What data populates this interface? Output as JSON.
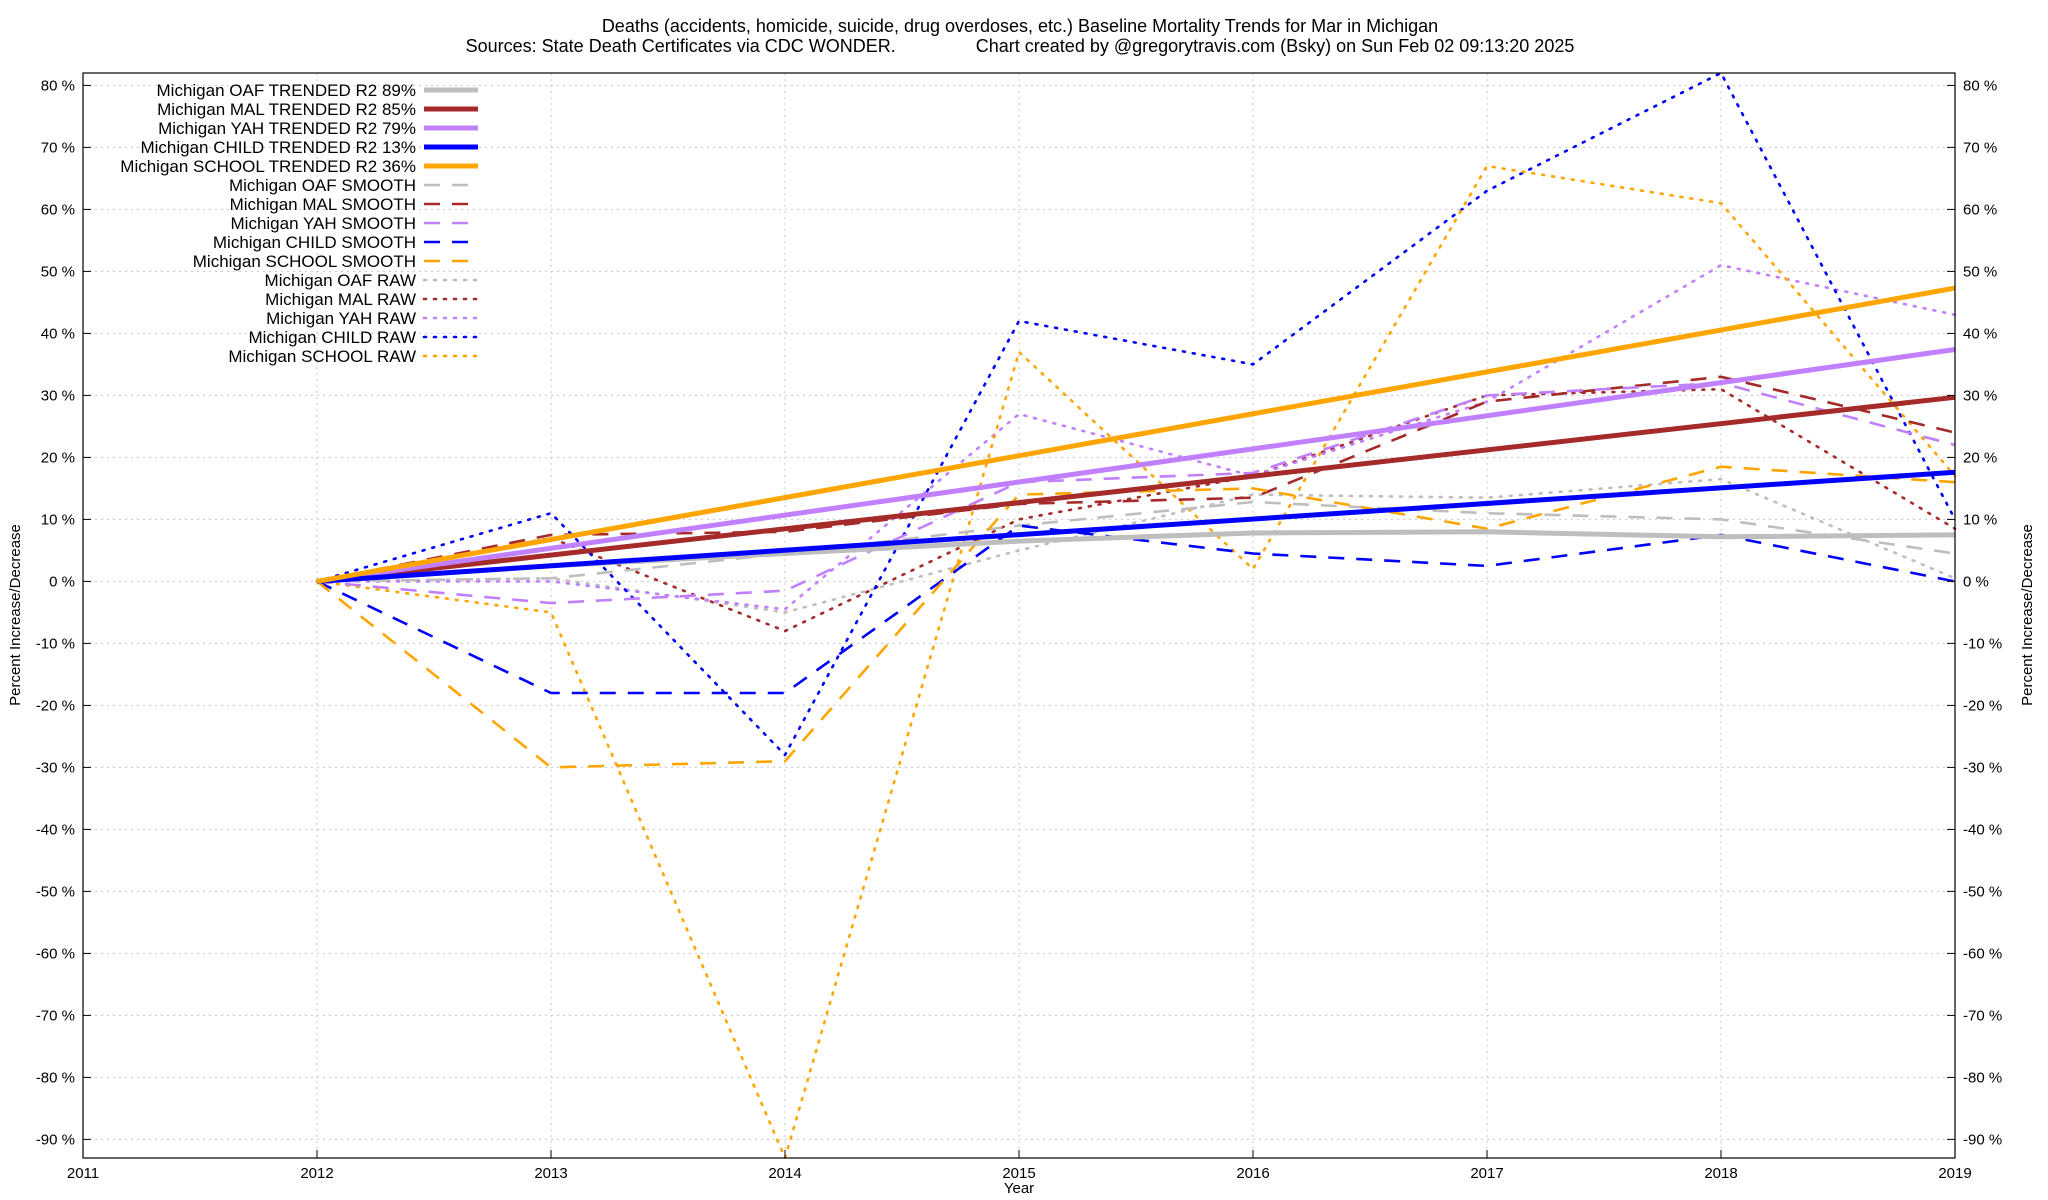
{
  "chart_data": {
    "type": "line",
    "title_lines": [
      "Deaths (accidents, homicide, suicide, drug overdoses, etc.)  Baseline Mortality Trends for Mar in Michigan",
      "Sources: State Death Certificates via CDC WONDER.                Chart created by @gregorytravis.com (Bsky) on Sun Feb 02 09:13:20 2025"
    ],
    "xlabel": "Year",
    "ylabel_left": "Percent Increase/Decrease",
    "ylabel_right": "Percent Increase/Decrease",
    "xlim": [
      2011,
      2019
    ],
    "ylim": [
      -93,
      82
    ],
    "x_ticks": [
      2011,
      2012,
      2013,
      2014,
      2015,
      2016,
      2017,
      2018,
      2019
    ],
    "y_ticks": [
      -90,
      -80,
      -70,
      -60,
      -50,
      -40,
      -30,
      -20,
      -10,
      0,
      10,
      20,
      30,
      40,
      50,
      60,
      70,
      80
    ],
    "y_tick_labels": [
      "-90 %",
      "-80 %",
      "-70 %",
      "-60 %",
      "-50 %",
      "-40 %",
      "-30 %",
      "-20 %",
      "-10 %",
      "0 %",
      "10 %",
      "20 %",
      "30 %",
      "40 %",
      "50 %",
      "60 %",
      "70 %",
      "80 %"
    ],
    "grid": true,
    "legend_position": "top-left",
    "series": [
      {
        "name": "Michigan OAF TRENDED R2  89%",
        "style": "solid",
        "color": "#bebebe",
        "x": [
          2012,
          2013,
          2014,
          2015,
          2016,
          2017,
          2018,
          2019
        ],
        "values": [
          0,
          2.5,
          4.5,
          6.5,
          7.8,
          8.0,
          7.2,
          7.5
        ]
      },
      {
        "name": "Michigan MAL TRENDED R2  85%",
        "style": "solid",
        "color": "#a52a2a",
        "x": [
          2012,
          2019
        ],
        "values": [
          0,
          29.7
        ]
      },
      {
        "name": "Michigan YAH TRENDED R2  79%",
        "style": "solid",
        "color": "#c080ff",
        "x": [
          2012,
          2019
        ],
        "values": [
          0,
          37.4
        ]
      },
      {
        "name": "Michigan CHILD TRENDED R2  13%",
        "style": "solid",
        "color": "#0000ff",
        "x": [
          2012,
          2019
        ],
        "values": [
          0,
          17.6
        ]
      },
      {
        "name": "Michigan SCHOOL TRENDED R2  36%",
        "style": "solid",
        "color": "#ffa500",
        "x": [
          2012,
          2019
        ],
        "values": [
          0,
          47.3
        ]
      },
      {
        "name": "Michigan OAF SMOOTH",
        "style": "dashed",
        "color": "#bebebe",
        "x": [
          2012,
          2013,
          2014,
          2015,
          2016,
          2017,
          2018,
          2019
        ],
        "values": [
          0,
          0.5,
          4.5,
          9.0,
          12.8,
          11.0,
          10.0,
          4.5
        ]
      },
      {
        "name": "Michigan MAL SMOOTH",
        "style": "dashed",
        "color": "#a52a2a",
        "x": [
          2012,
          2013,
          2014,
          2015,
          2016,
          2017,
          2018,
          2019
        ],
        "values": [
          0,
          7.5,
          8.0,
          12.5,
          13.5,
          29.0,
          33.0,
          24.0
        ]
      },
      {
        "name": "Michigan YAH SMOOTH",
        "style": "dashed",
        "color": "#c080ff",
        "x": [
          2012,
          2013,
          2014,
          2015,
          2016,
          2017,
          2018,
          2019
        ],
        "values": [
          0,
          -3.5,
          -1.5,
          16.0,
          17.5,
          30.0,
          32.0,
          22.0
        ]
      },
      {
        "name": "Michigan CHILD SMOOTH",
        "style": "dashed",
        "color": "#0000ff",
        "x": [
          2012,
          2013,
          2014,
          2015,
          2016,
          2017,
          2018,
          2019
        ],
        "values": [
          0,
          -18.0,
          -18.0,
          9.0,
          4.5,
          2.5,
          7.5,
          0.0
        ]
      },
      {
        "name": "Michigan SCHOOL SMOOTH",
        "style": "dashed",
        "color": "#ffa500",
        "x": [
          2012,
          2013,
          2014,
          2015,
          2016,
          2017,
          2018,
          2019
        ],
        "values": [
          0,
          -30.0,
          -29.0,
          14.0,
          15.0,
          8.5,
          18.5,
          16.0
        ]
      },
      {
        "name": "Michigan OAF RAW",
        "style": "dotted",
        "color": "#bebebe",
        "x": [
          2012,
          2013,
          2014,
          2015,
          2016,
          2017,
          2018,
          2019
        ],
        "values": [
          0,
          0.5,
          -5.0,
          5.0,
          14.0,
          13.5,
          16.5,
          0.5
        ]
      },
      {
        "name": "Michigan MAL RAW",
        "style": "dotted",
        "color": "#a52a2a",
        "x": [
          2012,
          2013,
          2014,
          2015,
          2016,
          2017,
          2018,
          2019
        ],
        "values": [
          0,
          7.0,
          -8.0,
          10.0,
          17.0,
          30.0,
          31.0,
          8.5
        ]
      },
      {
        "name": "Michigan YAH RAW",
        "style": "dotted",
        "color": "#c080ff",
        "x": [
          2012,
          2013,
          2014,
          2015,
          2016,
          2017,
          2018,
          2019
        ],
        "values": [
          0,
          0.0,
          -4.5,
          27.0,
          17.0,
          29.0,
          51.0,
          43.0
        ]
      },
      {
        "name": "Michigan CHILD RAW",
        "style": "dotted",
        "color": "#0000ff",
        "x": [
          2012,
          2013,
          2014,
          2015,
          2016,
          2017,
          2018,
          2019
        ],
        "values": [
          0,
          11.0,
          -28.0,
          42.0,
          35.0,
          63.0,
          82.0,
          10.0
        ]
      },
      {
        "name": "Michigan SCHOOL RAW",
        "style": "dotted",
        "color": "#ffa500",
        "x": [
          2012,
          2013,
          2014,
          2015,
          2016,
          2017,
          2018,
          2019
        ],
        "values": [
          0,
          -5.0,
          -93.0,
          37.0,
          2.0,
          67.0,
          61.0,
          17.0
        ]
      }
    ]
  }
}
